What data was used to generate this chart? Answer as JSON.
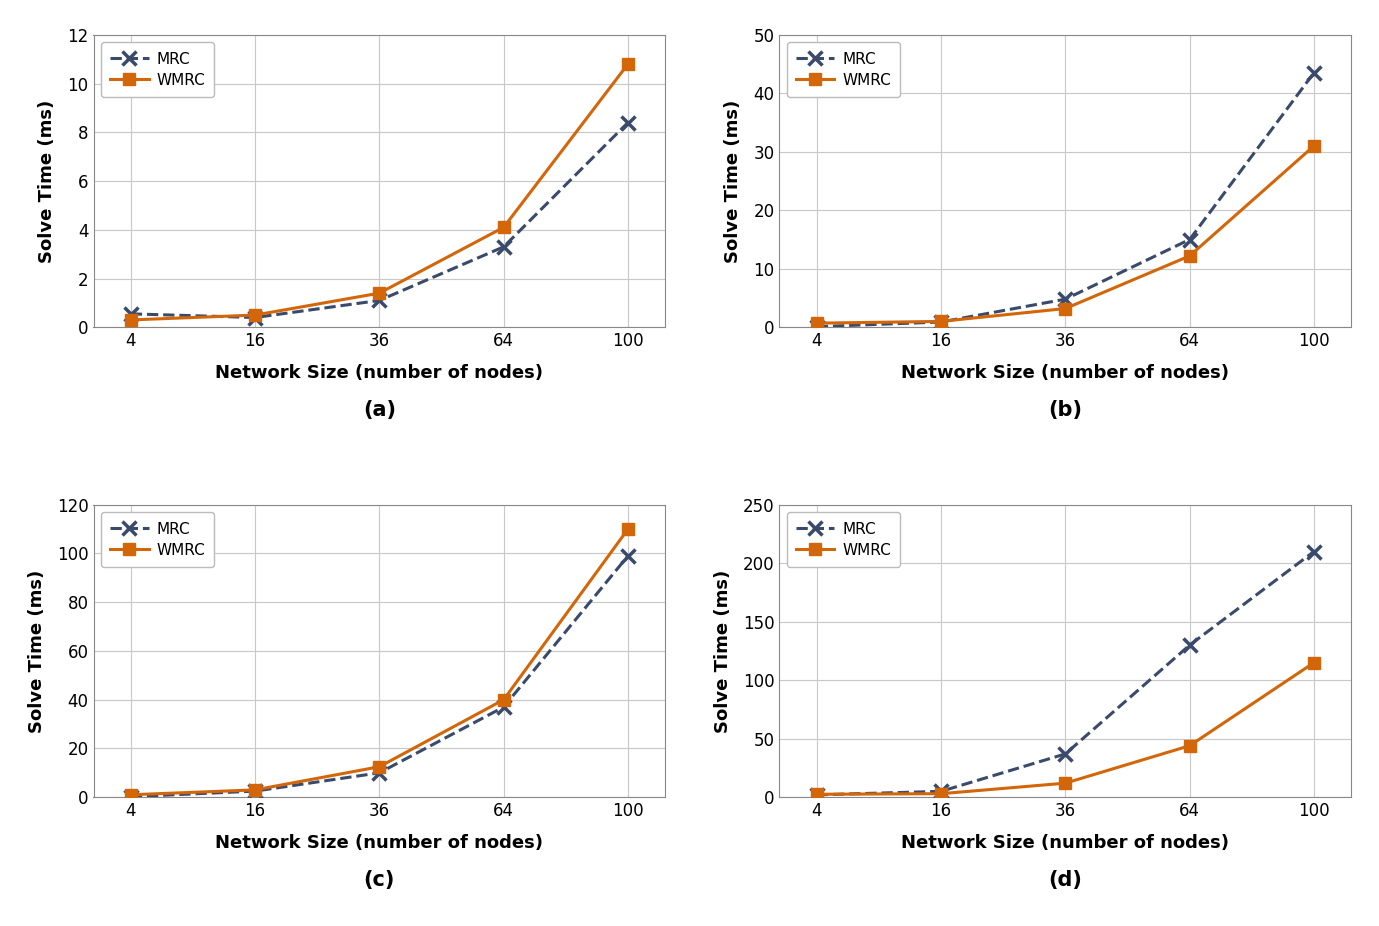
{
  "x_positions": [
    0,
    1,
    2,
    3,
    4
  ],
  "x_labels": [
    "4",
    "16",
    "36",
    "64",
    "100"
  ],
  "subplots": [
    {
      "label": "a",
      "mrc_y": [
        0.55,
        0.4,
        1.1,
        3.3,
        8.4
      ],
      "wmrc_y": [
        0.3,
        0.5,
        1.4,
        4.1,
        10.8
      ],
      "ylim": [
        0,
        12
      ],
      "yticks": [
        0,
        2,
        4,
        6,
        8,
        10,
        12
      ]
    },
    {
      "label": "b",
      "mrc_y": [
        0.1,
        0.9,
        4.8,
        15.0,
        43.5
      ],
      "wmrc_y": [
        0.7,
        1.0,
        3.2,
        12.2,
        31.0
      ],
      "ylim": [
        0,
        50
      ],
      "yticks": [
        0,
        10,
        20,
        30,
        40,
        50
      ]
    },
    {
      "label": "c",
      "mrc_y": [
        0.2,
        2.5,
        10.0,
        37.0,
        99.0
      ],
      "wmrc_y": [
        1.0,
        3.0,
        12.5,
        40.0,
        110.0
      ],
      "ylim": [
        0,
        120
      ],
      "yticks": [
        0,
        20,
        40,
        60,
        80,
        100,
        120
      ]
    },
    {
      "label": "d",
      "mrc_y": [
        2.0,
        5.0,
        37.0,
        130.0,
        210.0
      ],
      "wmrc_y": [
        2.5,
        3.0,
        12.0,
        44.0,
        115.0
      ],
      "ylim": [
        0,
        250
      ],
      "yticks": [
        0,
        50,
        100,
        150,
        200,
        250
      ]
    }
  ],
  "mrc_color": "#3a4a6b",
  "wmrc_color": "#d4660a",
  "xlabel": "Network Size (number of nodes)",
  "ylabel": "Solve Time (ms)",
  "mrc_label": "MRC",
  "wmrc_label": "WMRC",
  "background_color": "#ffffff",
  "grid_color": "#c8c8c8"
}
